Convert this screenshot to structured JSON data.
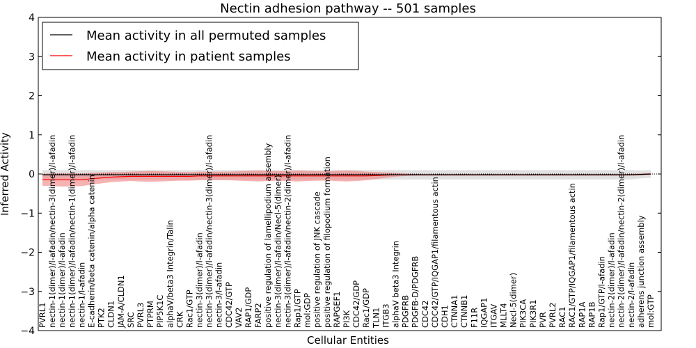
{
  "chart_data": {
    "type": "line",
    "title": "Nectin adhesion pathway -- 501 samples",
    "xlabel": "Cellular Entities",
    "ylabel": "Inferred Activity",
    "ylim": [
      -4,
      4
    ],
    "yticks": [
      -4,
      -3,
      -2,
      -1,
      0,
      1,
      2,
      3,
      4
    ],
    "legend_position": "top-left",
    "entities": [
      "PVRL1",
      "nectin-1(dimer)/l-afadin/nectin-3(dimer)/l-afadin",
      "nectin-1(dimer)/l-afadin",
      "nectin-1(dimer)/l-afadin/nectin-1(dimer)/l-afadin",
      "nectin-1/l-afadin",
      "E-cadherin/beta catenin/alpha catenin",
      "PTK2",
      "CLDN1",
      "JAM-A/CLDN1",
      "SRC",
      "PVRL3",
      "PTPRM",
      "PIP5K1C",
      "alphaV/beta3 Integrin/Talin",
      "CRK",
      "Rac1/GTP",
      "nectin-3(dimer)/l-afadin",
      "nectin-3(dimer)/l-afadin/nectin-3(dimer)/l-afadin",
      "nectin-3/l-afadin",
      "CDC42/GTP",
      "VAV2",
      "RAP1/GDP",
      "FARP2",
      "positive regulation of lamellipodium assembly",
      "nectin-3(dimer)/l-afadin/Necl-5(dimer)",
      "nectin-3(dimer)/l-afadin/nectin-2(dimer)/l-afadin",
      "Rap1/GTP",
      "mol:GDP",
      "positive regulation of JNK cascade",
      "positive regulation of filopodium formation",
      "RAPGEF1",
      "PI3K",
      "CDC42/GDP",
      "Rac1/GDP",
      "TLN1",
      "ITGB3",
      "alphaV beta3 Integrin",
      "PDGFRB",
      "PDGFB-D/PDGFRB",
      "CDC42",
      "CDC42/GTP/IQGAP1/filamentous actin",
      "CDH1",
      "CTNNA1",
      "CTNNB1",
      "F11R",
      "IQGAP1",
      "ITGAV",
      "MLLT4",
      "Necl-5(dimer)",
      "PIK3CA",
      "PIK3R1",
      "PVR",
      "PVRL2",
      "RAC1",
      "RAC1/GTP/IQGAP1/filamentous actin",
      "RAP1A",
      "RAP1B",
      "Rap1/GTP/l-afadin",
      "nectin-2(dimer)/l-afadin",
      "nectin-2(dimer)/l-afadin/nectin-2(dimer)/l-afadin",
      "nectin-2/l-afadin",
      "adherens junction assembly",
      "mol:GTP"
    ],
    "series": [
      {
        "name": "Mean activity in all permuted samples",
        "color": "#000000",
        "band_color": "#aaaaaa",
        "values": [
          -0.02,
          -0.02,
          -0.02,
          -0.02,
          -0.02,
          -0.02,
          -0.02,
          -0.02,
          -0.02,
          -0.02,
          -0.02,
          -0.02,
          -0.02,
          -0.02,
          -0.02,
          -0.02,
          -0.02,
          -0.02,
          -0.02,
          -0.02,
          -0.02,
          -0.02,
          -0.02,
          -0.02,
          -0.02,
          -0.02,
          -0.02,
          -0.02,
          -0.02,
          -0.02,
          -0.02,
          -0.02,
          -0.02,
          -0.02,
          -0.02,
          -0.02,
          -0.02,
          -0.02,
          -0.02,
          -0.02,
          -0.02,
          -0.02,
          -0.02,
          -0.02,
          -0.02,
          -0.02,
          -0.02,
          -0.02,
          -0.02,
          -0.02,
          -0.02,
          -0.02,
          -0.02,
          -0.02,
          -0.02,
          -0.02,
          -0.02,
          -0.02,
          -0.02,
          -0.02,
          -0.02,
          -0.01,
          0.0
        ],
        "band_halfwidth": [
          0.12,
          0.12,
          0.12,
          0.12,
          0.12,
          0.12,
          0.12,
          0.12,
          0.12,
          0.12,
          0.12,
          0.12,
          0.12,
          0.12,
          0.12,
          0.12,
          0.12,
          0.12,
          0.12,
          0.12,
          0.12,
          0.12,
          0.12,
          0.12,
          0.12,
          0.12,
          0.12,
          0.12,
          0.12,
          0.12,
          0.12,
          0.12,
          0.12,
          0.12,
          0.12,
          0.12,
          0.12,
          0.12,
          0.12,
          0.12,
          0.12,
          0.12,
          0.12,
          0.12,
          0.12,
          0.12,
          0.12,
          0.12,
          0.12,
          0.12,
          0.12,
          0.12,
          0.12,
          0.12,
          0.12,
          0.12,
          0.12,
          0.12,
          0.12,
          0.12,
          0.12,
          0.1,
          0.1
        ]
      },
      {
        "name": "Mean activity in patient samples",
        "color": "#ff0000",
        "band_color": "#f08080",
        "values": [
          -0.15,
          -0.15,
          -0.15,
          -0.15,
          -0.15,
          -0.12,
          -0.1,
          -0.08,
          -0.07,
          -0.06,
          -0.06,
          -0.06,
          -0.06,
          -0.06,
          -0.06,
          -0.06,
          -0.05,
          -0.05,
          -0.05,
          -0.05,
          -0.05,
          -0.05,
          -0.05,
          -0.05,
          -0.05,
          -0.05,
          -0.05,
          -0.05,
          -0.05,
          -0.05,
          -0.05,
          -0.05,
          -0.05,
          -0.05,
          -0.04,
          -0.03,
          -0.02,
          -0.02,
          -0.02,
          -0.02,
          -0.02,
          -0.02,
          -0.02,
          -0.02,
          -0.02,
          -0.02,
          -0.02,
          -0.02,
          -0.02,
          -0.02,
          -0.02,
          -0.02,
          -0.02,
          -0.02,
          -0.02,
          -0.02,
          -0.02,
          -0.02,
          -0.02,
          -0.02,
          -0.02,
          -0.01,
          0.0
        ],
        "band_halfwidth": [
          0.15,
          0.16,
          0.17,
          0.17,
          0.16,
          0.15,
          0.14,
          0.13,
          0.12,
          0.12,
          0.13,
          0.14,
          0.13,
          0.12,
          0.11,
          0.11,
          0.11,
          0.11,
          0.11,
          0.11,
          0.12,
          0.13,
          0.14,
          0.13,
          0.12,
          0.13,
          0.14,
          0.13,
          0.12,
          0.12,
          0.13,
          0.14,
          0.13,
          0.11,
          0.09,
          0.07,
          0.05,
          0.03,
          0.02,
          0.02,
          0.02,
          0.02,
          0.02,
          0.02,
          0.02,
          0.02,
          0.02,
          0.02,
          0.02,
          0.02,
          0.02,
          0.02,
          0.02,
          0.02,
          0.02,
          0.02,
          0.02,
          0.02,
          0.02,
          0.02,
          0.02,
          0.02,
          0.02
        ]
      }
    ]
  }
}
